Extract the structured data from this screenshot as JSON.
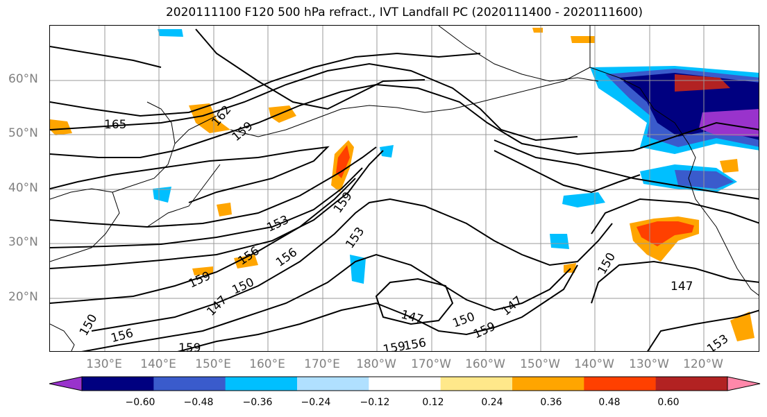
{
  "title": "2020111100 F120 500 hPa refract., IVT Landfall PC (2020111400 - 2020111600)",
  "lat_labels": [
    "60°N",
    "50°N",
    "40°N",
    "30°N",
    "20°N"
  ],
  "lon_labels": [
    "130°E",
    "140°E",
    "150°E",
    "160°E",
    "170°E",
    "180°W",
    "170°W",
    "160°W",
    "150°W",
    "140°W",
    "130°W",
    "120°W"
  ],
  "contour_labels": [
    "165",
    "162",
    "159",
    "153",
    "159",
    "153",
    "156",
    "156",
    "159",
    "150",
    "147",
    "150",
    "156",
    "159",
    "147",
    "150",
    "159",
    "147",
    "159",
    "156",
    "150",
    "147",
    "153"
  ],
  "colorbar": {
    "ticks": [
      "−0.60",
      "−0.48",
      "−0.36",
      "−0.24",
      "−0.12",
      "0.12",
      "0.24",
      "0.36",
      "0.48",
      "0.60"
    ],
    "colors": [
      "#9933cc",
      "#000080",
      "#3a5bcc",
      "#00bfff",
      "#b0e0ff",
      "#ffffff",
      "#ffe88a",
      "#ffa500",
      "#ff4000",
      "#b22222",
      "#ff88aa"
    ]
  }
}
